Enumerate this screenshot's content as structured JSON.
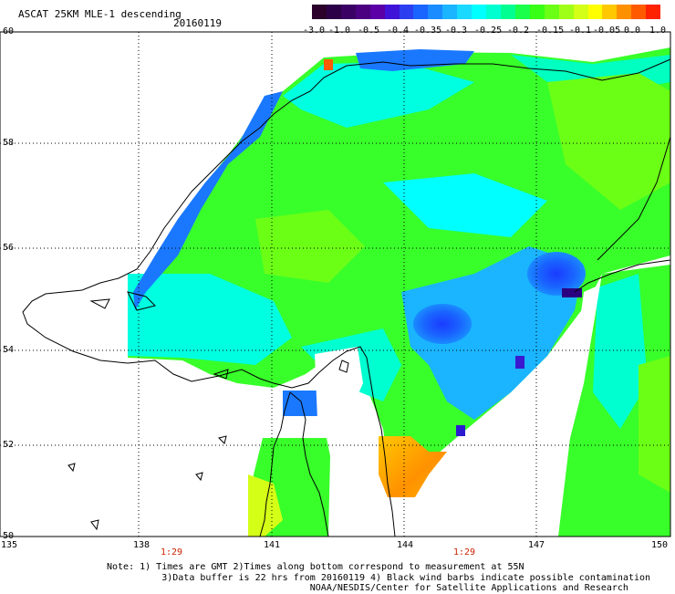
{
  "title": "ASCAT 25KM MLE-1 descending",
  "date": "20160119",
  "colorbar": {
    "ticks": [
      "-3.0",
      "-1.0",
      "-0.5",
      "-0.4",
      "-0.35",
      "-0.3",
      "-0.25",
      "-0.2",
      "-0.15",
      "-0.1",
      "-0.05",
      "0.0",
      "1.0"
    ],
    "colors": [
      "#2b002b",
      "#2c0046",
      "#3a0063",
      "#4a0080",
      "#5a00a6",
      "#4014d8",
      "#2b3ff0",
      "#1a64ff",
      "#1a8cff",
      "#1ab4ff",
      "#1ad9ff",
      "#00ffff",
      "#00ffd0",
      "#00ff90",
      "#1aff4a",
      "#38ff16",
      "#6cff16",
      "#a0ff16",
      "#d4ff16",
      "#ffff00",
      "#ffc800",
      "#ff9100",
      "#ff5a00",
      "#ff2200"
    ]
  },
  "axes": {
    "lat_labels": [
      "60",
      "58",
      "56",
      "54",
      "52",
      "50"
    ],
    "lon_labels": [
      "135",
      "138",
      "141",
      "144",
      "147",
      "150"
    ]
  },
  "times": [
    "1:29",
    "1:29"
  ],
  "notes": {
    "line1": "Note: 1) Times are GMT 2)Times along bottom correspond to measurement at 55N",
    "line2": "3)Data buffer is 22 hrs from 20160119 4) Black wind barbs indicate possible contamination",
    "line3": "NOAA/NESDIS/Center for Satellite Applications and Research"
  }
}
